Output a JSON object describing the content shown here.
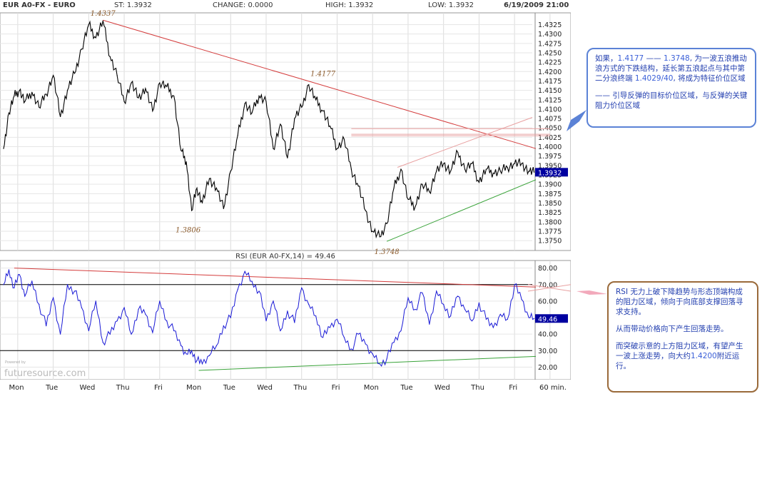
{
  "header": {
    "symbol": "EUR A0-FX - EURO",
    "last_label": "ST: 1.3932",
    "change_label": "CHANGE: 0.0000",
    "high_label": "HIGH: 1.3932",
    "low_label": "LOW: 1.3932",
    "datetime": "6/19/2009 21:00"
  },
  "rsi_label": "RSI (EUR A0-FX,14) = 49.46",
  "watermark": "futuresource.com",
  "watermark_small": "Powered by",
  "colors": {
    "price": "#000000",
    "rsi": "#1a1ad6",
    "trend_down": "#d43c3c",
    "trend_up": "#3aa33a",
    "resistance_band": "#e8a0a0",
    "label_price": "#8b5a2b",
    "badge": "#0000a0"
  },
  "chart_data": [
    {
      "type": "line",
      "title": "EUR A0-FX - EURO",
      "ylim": [
        1.3735,
        1.4345
      ],
      "y_ticks": [
        "1.4325",
        "1.4300",
        "1.4275",
        "1.4250",
        "1.4225",
        "1.4200",
        "1.4175",
        "1.4150",
        "1.4125",
        "1.4100",
        "1.4075",
        "1.4050",
        "1.4025",
        "1.4000",
        "1.3975",
        "1.3950",
        "1.3925",
        "1.3900",
        "1.3875",
        "1.3850",
        "1.3825",
        "1.3800",
        "1.3775",
        "1.3750"
      ],
      "x_ticks": [
        "Mon",
        "Tue",
        "Wed",
        "Thu",
        "Fri",
        "Mon",
        "Tue",
        "Wed",
        "Thu",
        "Fri",
        "Mon",
        "Tue",
        "Wed",
        "Thu",
        "Fri"
      ],
      "x_unit": "60 min.",
      "last_value": "1.3932",
      "annotations": [
        {
          "text": "1.4337",
          "x": 2.8,
          "y": 1.4337
        },
        {
          "text": "1.4177",
          "x": 9.0,
          "y": 1.4177
        },
        {
          "text": "1.3806",
          "x": 5.2,
          "y": 1.3806
        },
        {
          "text": "1.3748",
          "x": 10.8,
          "y": 1.3748
        }
      ],
      "series": [
        {
          "x": [
            0,
            0.15,
            0.3,
            0.45,
            0.6,
            0.8,
            1,
            1.2,
            1.4,
            1.6,
            1.8,
            2,
            2.2,
            2.4,
            2.6,
            2.8,
            3,
            3.2,
            3.4,
            3.6,
            3.8,
            4,
            4.2,
            4.4,
            4.6,
            4.8,
            5,
            5.15,
            5.3,
            5.45,
            5.6,
            5.8,
            6,
            6.2,
            6.4,
            6.6,
            6.8,
            7,
            7.2,
            7.4,
            7.6,
            7.8,
            8,
            8.2,
            8.4,
            8.6,
            8.8,
            9,
            9.2,
            9.4,
            9.6,
            9.8,
            10,
            10.2,
            10.4,
            10.6,
            10.8,
            11,
            11.2,
            11.4,
            11.6,
            11.8,
            12,
            12.2,
            12.4,
            12.6,
            12.8,
            13,
            13.2,
            13.4,
            13.6,
            13.8,
            14,
            14.2,
            14.4,
            14.6,
            14.8,
            14.95
          ],
          "values": [
            1.3995,
            1.409,
            1.4135,
            1.415,
            1.412,
            1.4145,
            1.4105,
            1.414,
            1.419,
            1.408,
            1.415,
            1.4195,
            1.426,
            1.4325,
            1.429,
            1.4335,
            1.424,
            1.419,
            1.412,
            1.417,
            1.413,
            1.4155,
            1.4095,
            1.417,
            1.416,
            1.4135,
            1.399,
            1.396,
            1.383,
            1.389,
            1.385,
            1.3915,
            1.389,
            1.3835,
            1.3935,
            1.403,
            1.4115,
            1.409,
            1.4135,
            1.412,
            1.3995,
            1.406,
            1.397,
            1.4075,
            1.4105,
            1.4165,
            1.4125,
            1.4095,
            1.4055,
            1.3995,
            1.402,
            1.394,
            1.3895,
            1.383,
            1.3775,
            1.376,
            1.3795,
            1.389,
            1.394,
            1.386,
            1.384,
            1.39,
            1.388,
            1.3935,
            1.3955,
            1.3935,
            1.3985,
            1.394,
            1.3955,
            1.3905,
            1.394,
            1.393,
            1.3935,
            1.3945,
            1.3955,
            1.3955,
            1.3935,
            1.3932
          ]
        }
      ],
      "trendlines": [
        {
          "name": "descending-resistance",
          "from": [
            2.8,
            1.4337
          ],
          "to": [
            15.0,
            1.3995
          ]
        },
        {
          "name": "rising-support",
          "from": [
            10.8,
            1.3748
          ],
          "to": [
            15.0,
            1.3912
          ]
        },
        {
          "name": "channel-upper",
          "from": [
            11.1,
            1.3945
          ],
          "to": [
            14.9,
            1.4078
          ]
        },
        {
          "name": "resistance-zone-top",
          "from": [
            9.8,
            1.4048
          ],
          "to": [
            15.4,
            1.4048
          ]
        },
        {
          "name": "resistance-zone-mid",
          "from": [
            9.8,
            1.4033
          ],
          "to": [
            15.4,
            1.4033
          ]
        },
        {
          "name": "resistance-zone-low",
          "from": [
            9.8,
            1.4029
          ],
          "to": [
            15.4,
            1.4029
          ]
        }
      ]
    },
    {
      "type": "line",
      "title": "RSI (EUR A0-FX,14) = 49.46",
      "ylim": [
        15,
        82
      ],
      "y_ticks": [
        "80.00",
        "70.00",
        "60.00",
        "50.00",
        "40.00",
        "30.00",
        "20.00"
      ],
      "last_value": "49.46",
      "reference_lines": [
        70,
        30
      ],
      "series": [
        {
          "x": [
            0,
            0.15,
            0.3,
            0.45,
            0.6,
            0.8,
            1,
            1.2,
            1.4,
            1.6,
            1.8,
            2,
            2.2,
            2.4,
            2.6,
            2.8,
            3,
            3.2,
            3.4,
            3.6,
            3.8,
            4,
            4.2,
            4.4,
            4.6,
            4.8,
            5,
            5.15,
            5.3,
            5.45,
            5.6,
            5.8,
            6,
            6.2,
            6.4,
            6.6,
            6.8,
            7,
            7.2,
            7.4,
            7.6,
            7.8,
            8,
            8.2,
            8.4,
            8.6,
            8.8,
            9,
            9.2,
            9.4,
            9.6,
            9.8,
            10,
            10.2,
            10.4,
            10.6,
            10.8,
            11,
            11.2,
            11.4,
            11.6,
            11.8,
            12,
            12.2,
            12.4,
            12.6,
            12.8,
            13,
            13.2,
            13.4,
            13.6,
            13.8,
            14,
            14.2,
            14.4,
            14.6,
            14.8,
            14.95
          ],
          "values": [
            70,
            79,
            68,
            76,
            63,
            72,
            58,
            45,
            62,
            40,
            70,
            66,
            56,
            42,
            60,
            35,
            40,
            48,
            56,
            40,
            55,
            52,
            41,
            60,
            48,
            42,
            33,
            28,
            30,
            24,
            22,
            27,
            33,
            45,
            50,
            67,
            78,
            72,
            66,
            48,
            60,
            42,
            54,
            47,
            68,
            58,
            51,
            38,
            44,
            49,
            38,
            31,
            40,
            34,
            28,
            22,
            25,
            35,
            42,
            62,
            55,
            65,
            46,
            66,
            58,
            51,
            63,
            55,
            48,
            59,
            49,
            44,
            52,
            49,
            70,
            61,
            50,
            49.46
          ]
        }
      ],
      "trendlines": [
        {
          "name": "rsi-descending",
          "from": [
            0.3,
            80
          ],
          "to": [
            15.0,
            68.5
          ]
        },
        {
          "name": "rsi-rising",
          "from": [
            5.5,
            18
          ],
          "to": [
            15.0,
            26.5
          ]
        }
      ]
    }
  ],
  "callouts": {
    "top": {
      "p1_a": "如果，",
      "p1_n1": "1.4177",
      "p1_b": " —— ",
      "p1_n2": "1.3748",
      "p1_c": ", 为一波五浪推动浪方式的下跌结构，延长第五浪起点与其中第二分浪终端 ",
      "p1_n3": "1.4029/40",
      "p1_d": ", 将成为特征价位区域",
      "p2": "—— 引导反弹的目标价位区域，与反弹的关键阻力价位区域"
    },
    "bottom": {
      "p1": "RSI 无力上破下降趋势与形态顶端构成的阻力区域，倾向于向底部支撑回落寻求支持。",
      "p2": "从而带动价格向下产生回落走势。",
      "p3_a": "而突破示意的上方阻力区域，有望产生一波上涨走势，向大约",
      "p3_n": "1.4200",
      "p3_b": "附近运行。"
    }
  }
}
